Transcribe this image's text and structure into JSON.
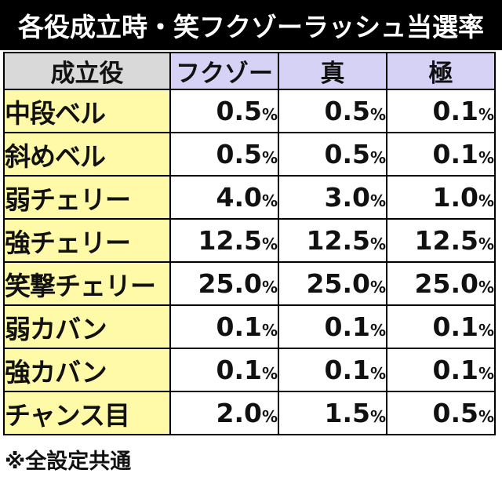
{
  "title": "各役成立時・笑フクゾーラッシュ当選率",
  "table": {
    "headers": [
      "成立役",
      "フクゾー",
      "真",
      "極"
    ],
    "percent_sign": "%",
    "rows": [
      {
        "role": "中段ベル",
        "values": [
          "0.5",
          "0.5",
          "0.1"
        ]
      },
      {
        "role": "斜めベル",
        "values": [
          "0.5",
          "0.5",
          "0.1"
        ]
      },
      {
        "role": "弱チェリー",
        "values": [
          "4.0",
          "3.0",
          "1.0"
        ]
      },
      {
        "role": "強チェリー",
        "values": [
          "12.5",
          "12.5",
          "12.5"
        ]
      },
      {
        "role": "笑撃チェリー",
        "values": [
          "25.0",
          "25.0",
          "25.0"
        ]
      },
      {
        "role": "弱カバン",
        "values": [
          "0.1",
          "0.1",
          "0.1"
        ]
      },
      {
        "role": "強カバン",
        "values": [
          "0.1",
          "0.1",
          "0.1"
        ]
      },
      {
        "role": "チャンス目",
        "values": [
          "2.0",
          "1.5",
          "0.5"
        ]
      }
    ]
  },
  "footnote": "※全設定共通",
  "colors": {
    "title_bg": "#000000",
    "header_role_bg": "#d9d9d9",
    "header_col_bg": "#d6d2f5",
    "role_cell_bg": "#fffaa8"
  }
}
